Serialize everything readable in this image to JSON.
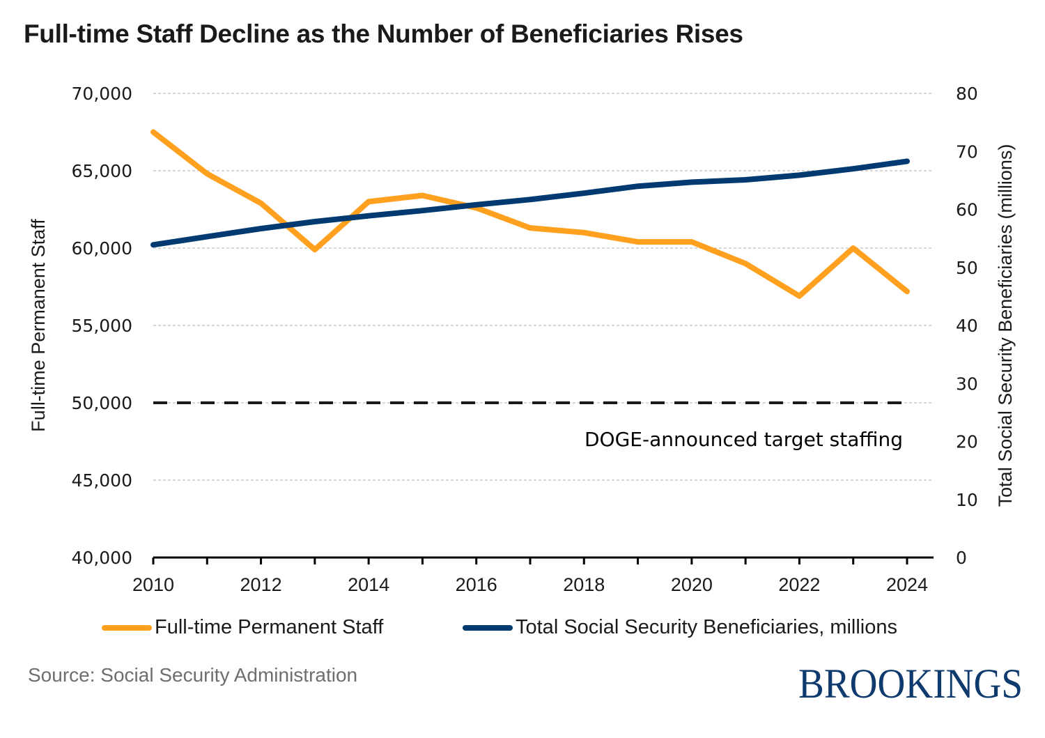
{
  "header": {
    "title": "Full-time Staff Decline as the Number of Beneficiaries Rises"
  },
  "footer": {
    "source_label": "Source:",
    "source_text": " Social Security Administration",
    "brand": "BROOKINGS"
  },
  "colors": {
    "staff": "#FFA01E",
    "beneficiaries": "#003A70",
    "target": "#1a1a1a",
    "grid": "#bdbdbd",
    "brand": "#0f3a6e"
  },
  "chart_data": {
    "type": "line",
    "title": "Full-time Staff Decline as the Number of Beneficiaries Rises",
    "x": [
      2010,
      2011,
      2012,
      2013,
      2014,
      2015,
      2016,
      2017,
      2018,
      2019,
      2020,
      2021,
      2022,
      2023,
      2024
    ],
    "xlabel": "",
    "x_tick_labels": [
      "2010",
      "2012",
      "2014",
      "2016",
      "2018",
      "2020",
      "2022",
      "2024"
    ],
    "x_tick_values": [
      2010,
      2012,
      2014,
      2016,
      2018,
      2020,
      2022,
      2024
    ],
    "xlim": [
      2010,
      2024
    ],
    "ylabel_left": "Full-time Permanent Staff",
    "ylim_left": [
      40000,
      70000
    ],
    "y_left_ticks": [
      40000,
      45000,
      50000,
      55000,
      60000,
      65000,
      70000
    ],
    "y_left_tick_labels": [
      "40,000",
      "45,000",
      "50,000",
      "55,000",
      "60,000",
      "65,000",
      "70,000"
    ],
    "ylabel_right": "Total Social Security Beneficiaries (millions)",
    "ylim_right": [
      0,
      80
    ],
    "y_right_ticks": [
      0,
      10,
      20,
      30,
      40,
      50,
      60,
      70,
      80
    ],
    "y_right_tick_labels": [
      "0",
      "10",
      "20",
      "30",
      "40",
      "50",
      "60",
      "70",
      "80"
    ],
    "grid": "horizontal dashed",
    "legend_position": "bottom",
    "series": [
      {
        "name": "Full-time Permanent Staff",
        "axis": "left",
        "color": "#FFA01E",
        "values": [
          67500,
          64800,
          62900,
          59900,
          63000,
          63400,
          62600,
          61300,
          61000,
          60400,
          60400,
          59000,
          56900,
          60000,
          57200
        ]
      },
      {
        "name": "Total Social Security Beneficiaries, millions",
        "axis": "right",
        "color": "#003A70",
        "values": [
          53.9,
          55.3,
          56.7,
          57.9,
          58.9,
          59.8,
          60.8,
          61.7,
          62.8,
          64.0,
          64.7,
          65.1,
          65.9,
          67.0,
          68.3
        ]
      }
    ],
    "reference_lines": [
      {
        "axis": "left",
        "value": 50000,
        "style": "dashed",
        "label": "DOGE-announced target staffing"
      }
    ]
  }
}
